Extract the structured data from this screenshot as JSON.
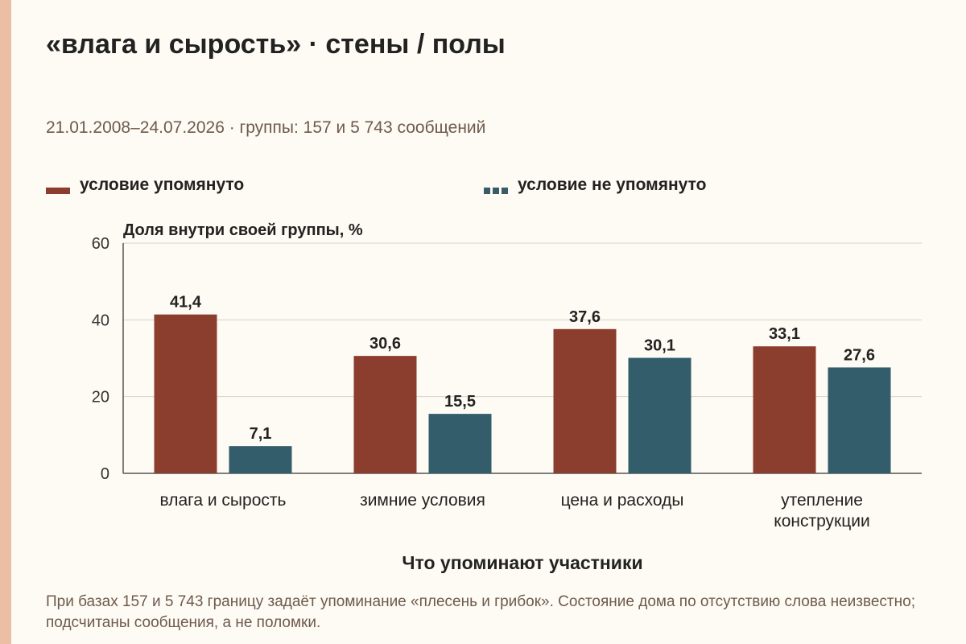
{
  "title": "«влага и сырость» · стены / полы",
  "subtitle": "21.01.2008–24.07.2026 · группы: 157 и 5 743 сообщений",
  "legend": {
    "mentioned": "условие упомянуто",
    "not_mentioned": "условие не упомянуто"
  },
  "footnote": "При базах 157 и 5 743 границу задаёт упоминание «плесень и грибок». Состояние дома по отсутствию слова неизвестно; подсчитаны сообщения, а не поломки.",
  "colors": {
    "mentioned": "#8b3d2e",
    "not_mentioned": "#335d6b",
    "grid": "#d9d2c8",
    "background": "#fdfbf3",
    "accent_stripe": "#ecbfa5"
  },
  "chart_data": {
    "type": "bar",
    "ylabel": "Доля внутри своей группы, %",
    "xlabel": "Что упоминают участники",
    "ylim": [
      0,
      60
    ],
    "yticks": [
      0,
      20,
      40,
      60
    ],
    "grid": true,
    "legend_position": "top",
    "categories": [
      [
        "влага и сырость"
      ],
      [
        "зимние условия"
      ],
      [
        "цена и расходы"
      ],
      [
        "утепление",
        "конструкции"
      ]
    ],
    "series": [
      {
        "name": "условие упомянуто",
        "values": [
          41.4,
          30.6,
          37.6,
          33.1
        ],
        "labels": [
          "41,4",
          "30,6",
          "37,6",
          "33,1"
        ]
      },
      {
        "name": "условие не упомянуто",
        "values": [
          7.1,
          15.5,
          30.1,
          27.6
        ],
        "labels": [
          "7,1",
          "15,5",
          "30,1",
          "27,6"
        ]
      }
    ]
  }
}
